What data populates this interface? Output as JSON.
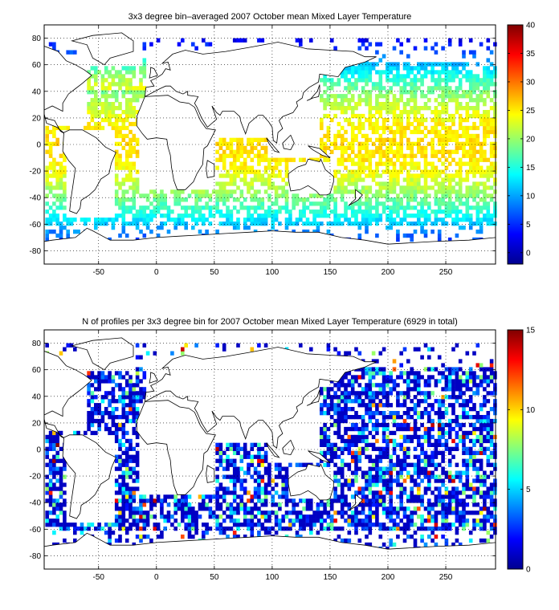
{
  "chart_data": [
    {
      "type": "heatmap",
      "title": "3x3 degree bin–averaged 2007 October mean Mixed Layer Temperature",
      "xlim": [
        -97,
        293
      ],
      "ylim": [
        -90,
        90
      ],
      "x_ticks": [
        -50,
        0,
        50,
        100,
        150,
        200,
        250
      ],
      "y_ticks": [
        80,
        60,
        40,
        20,
        0,
        -20,
        -40,
        -60,
        -80
      ],
      "grid": true,
      "bin_size_deg": 3,
      "colorbar": {
        "min": -2,
        "max": 40,
        "ticks": [
          0,
          5,
          10,
          15,
          20,
          25,
          30,
          35,
          40
        ],
        "colormap": "jet"
      }
    },
    {
      "type": "heatmap",
      "title": "N of profiles per 3x3 degree bin for 2007 October mean Mixed Layer Temperature  (6929 in total)",
      "total_profiles": 6929,
      "xlim": [
        -97,
        293
      ],
      "ylim": [
        -90,
        90
      ],
      "x_ticks": [
        -50,
        0,
        50,
        100,
        150,
        200,
        250
      ],
      "y_ticks": [
        80,
        60,
        40,
        20,
        0,
        -20,
        -40,
        -60,
        -80
      ],
      "grid": true,
      "bin_size_deg": 3,
      "colorbar": {
        "min": 0,
        "max": 15,
        "ticks": [
          0,
          5,
          10,
          15
        ],
        "colormap": "jet"
      }
    }
  ]
}
